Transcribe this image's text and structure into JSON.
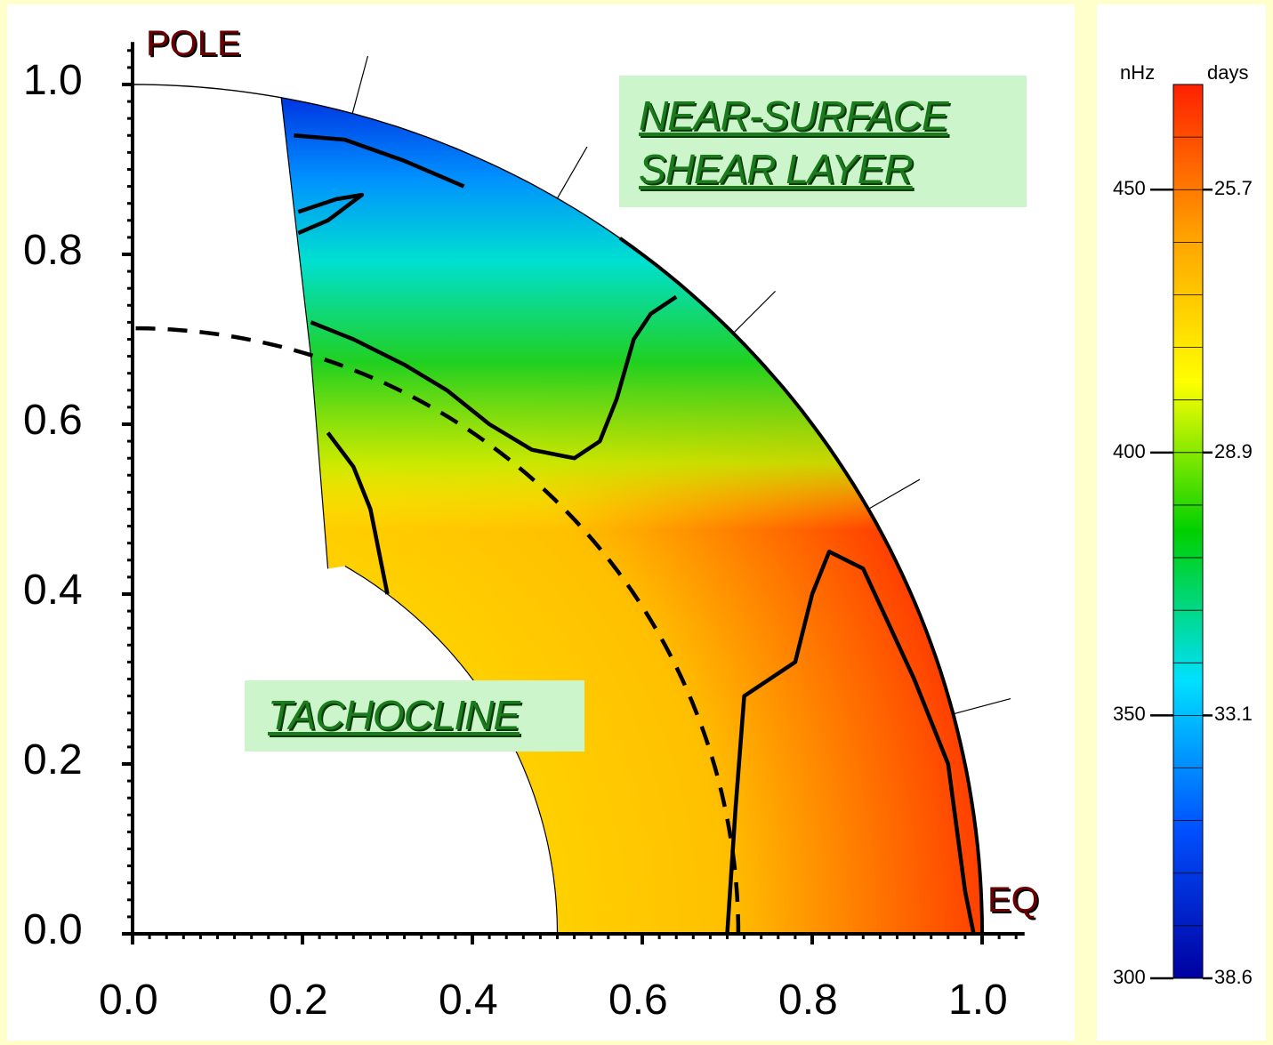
{
  "chart_data": {
    "type": "heatmap",
    "xticks": [
      "0.0",
      "0.2",
      "0.4",
      "0.6",
      "0.8",
      "1.0"
    ],
    "yticks": [
      "0.0",
      "0.2",
      "0.4",
      "0.6",
      "0.8",
      "1.0"
    ],
    "xlim": [
      0,
      1.05
    ],
    "ylim": [
      0,
      1.05
    ],
    "grid": false,
    "labels": {
      "pole": "POLE",
      "equator": "EQ"
    },
    "annotations": {
      "shear_line1": "NEAR-SURFACE",
      "shear_line2": "SHEAR LAYER",
      "tachocline": "TACHOCLINE"
    },
    "colorbar": {
      "left_unit": "nHz",
      "right_unit": "days",
      "range_nHz": [
        300,
        470
      ],
      "ticks": [
        {
          "nHz": "450",
          "days": "25.7",
          "value": 450
        },
        {
          "nHz": "400",
          "days": "28.9",
          "value": 400
        },
        {
          "nHz": "350",
          "days": "33.1",
          "value": 350
        },
        {
          "nHz": "300",
          "days": "38.6",
          "value": 300
        }
      ],
      "colors": [
        "#0000a0",
        "#0050ff",
        "#00e0ff",
        "#00d000",
        "#ffff00",
        "#ffa000",
        "#ff2000"
      ]
    },
    "tachocline_radius": 0.713,
    "domain": {
      "r_min": 0.5,
      "r_max": 1.0,
      "lat_min_deg": 0,
      "lat_max_deg": 80
    },
    "data_gap_boundary": [
      [
        0.175,
        0.985
      ],
      [
        0.21,
        0.68
      ],
      [
        0.23,
        0.43
      ]
    ],
    "rotation_rate_contours_nHz": [
      {
        "level": 450,
        "emphasis": true,
        "points": [
          [
            0.7,
            0.0
          ],
          [
            0.71,
            0.15
          ],
          [
            0.72,
            0.28
          ],
          [
            0.78,
            0.32
          ],
          [
            0.8,
            0.4
          ],
          [
            0.82,
            0.45
          ],
          [
            0.86,
            0.43
          ],
          [
            0.92,
            0.3
          ],
          [
            0.96,
            0.2
          ],
          [
            0.98,
            0.05
          ],
          [
            0.99,
            0.0
          ]
        ]
      },
      {
        "level": 450,
        "emphasis": true,
        "points": [
          [
            0.23,
            0.59
          ],
          [
            0.26,
            0.55
          ],
          [
            0.28,
            0.5
          ],
          [
            0.3,
            0.4
          ]
        ]
      },
      {
        "level": 400,
        "emphasis": true,
        "points": [
          [
            0.21,
            0.72
          ],
          [
            0.26,
            0.7
          ],
          [
            0.32,
            0.67
          ],
          [
            0.37,
            0.64
          ],
          [
            0.42,
            0.6
          ],
          [
            0.47,
            0.57
          ],
          [
            0.52,
            0.56
          ],
          [
            0.55,
            0.58
          ],
          [
            0.57,
            0.63
          ],
          [
            0.59,
            0.7
          ],
          [
            0.61,
            0.73
          ],
          [
            0.64,
            0.75
          ]
        ]
      },
      {
        "level": 350,
        "emphasis": true,
        "points": [
          [
            0.195,
            0.85
          ],
          [
            0.24,
            0.865
          ],
          [
            0.27,
            0.87
          ],
          [
            0.23,
            0.84
          ],
          [
            0.195,
            0.825
          ]
        ]
      },
      {
        "level": 340,
        "emphasis": true,
        "points": [
          [
            0.19,
            0.94
          ],
          [
            0.25,
            0.935
          ],
          [
            0.32,
            0.91
          ],
          [
            0.39,
            0.88
          ]
        ]
      }
    ]
  }
}
